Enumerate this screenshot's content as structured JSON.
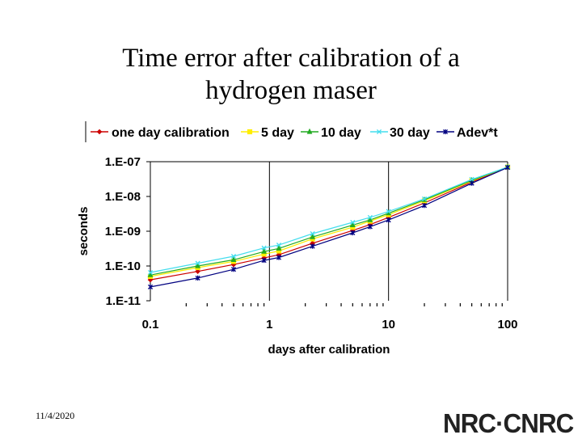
{
  "slide": {
    "title_line1": "Time error after calibration of a",
    "title_line2": "hydrogen maser",
    "date": "11/4/2020",
    "logo_text": "NRC·CNRC"
  },
  "chart_data": {
    "type": "line",
    "title": "Time error after calibration of a hydrogen maser",
    "xlabel": "days after calibration",
    "ylabel": "seconds",
    "xscale": "log",
    "yscale": "log",
    "xlim": [
      0.1,
      100
    ],
    "ylim": [
      1e-11,
      1e-07
    ],
    "x_tick_labels": [
      "0.1",
      "1",
      "10",
      "100"
    ],
    "y_tick_labels": [
      "1.E-11",
      "1.E-10",
      "1.E-09",
      "1.E-08",
      "1.E-07"
    ],
    "grid": "vertical major lines",
    "legend_position": "top",
    "series": [
      {
        "name": "one day calibration",
        "color": "#cc0000",
        "marker": "diamond",
        "x": [
          0.1,
          0.25,
          0.5,
          0.9,
          1.2,
          2.3,
          5,
          7,
          10,
          20,
          50,
          100
        ],
        "y": [
          4e-11,
          7e-11,
          1.1e-10,
          1.7e-10,
          2.1e-10,
          4.5e-10,
          1.05e-09,
          1.55e-09,
          2.5e-09,
          6.5e-09,
          2.6e-08,
          7e-08
        ]
      },
      {
        "name": "5 day",
        "color": "#ffee00",
        "marker": "square",
        "x": [
          0.1,
          0.25,
          0.5,
          0.9,
          1.2,
          2.3,
          5,
          7,
          10,
          20,
          50,
          100
        ],
        "y": [
          5e-11,
          9e-11,
          1.35e-10,
          2.2e-10,
          2.7e-10,
          6e-10,
          1.3e-09,
          1.95e-09,
          3e-09,
          7.5e-09,
          2.8e-08,
          7e-08
        ]
      },
      {
        "name": "10 day",
        "color": "#22aa22",
        "marker": "triangle",
        "x": [
          0.1,
          0.25,
          0.5,
          0.9,
          1.2,
          2.3,
          5,
          7,
          10,
          20,
          50,
          100
        ],
        "y": [
          5.5e-11,
          1e-10,
          1.5e-10,
          2.6e-10,
          3.2e-10,
          6.8e-10,
          1.5e-09,
          2.1e-09,
          3.3e-09,
          8e-09,
          2.9e-08,
          7e-08
        ]
      },
      {
        "name": "30 day",
        "color": "#44ddee",
        "marker": "x",
        "x": [
          0.1,
          0.25,
          0.5,
          0.9,
          1.2,
          2.3,
          5,
          7,
          10,
          20,
          50,
          100
        ],
        "y": [
          6.5e-11,
          1.2e-10,
          1.9e-10,
          3.3e-10,
          4e-10,
          8.5e-10,
          1.8e-09,
          2.5e-09,
          3.7e-09,
          8.5e-09,
          3.1e-08,
          7e-08
        ]
      },
      {
        "name": "Adev*t",
        "color": "#000080",
        "marker": "star",
        "x": [
          0.1,
          0.25,
          0.5,
          0.9,
          1.2,
          2.3,
          5,
          7,
          10,
          20,
          50,
          100
        ],
        "y": [
          2.5e-11,
          4.5e-11,
          8e-11,
          1.45e-10,
          1.75e-10,
          3.7e-10,
          9e-10,
          1.35e-09,
          2.1e-09,
          5.5e-09,
          2.4e-08,
          6.8e-08
        ]
      }
    ]
  }
}
